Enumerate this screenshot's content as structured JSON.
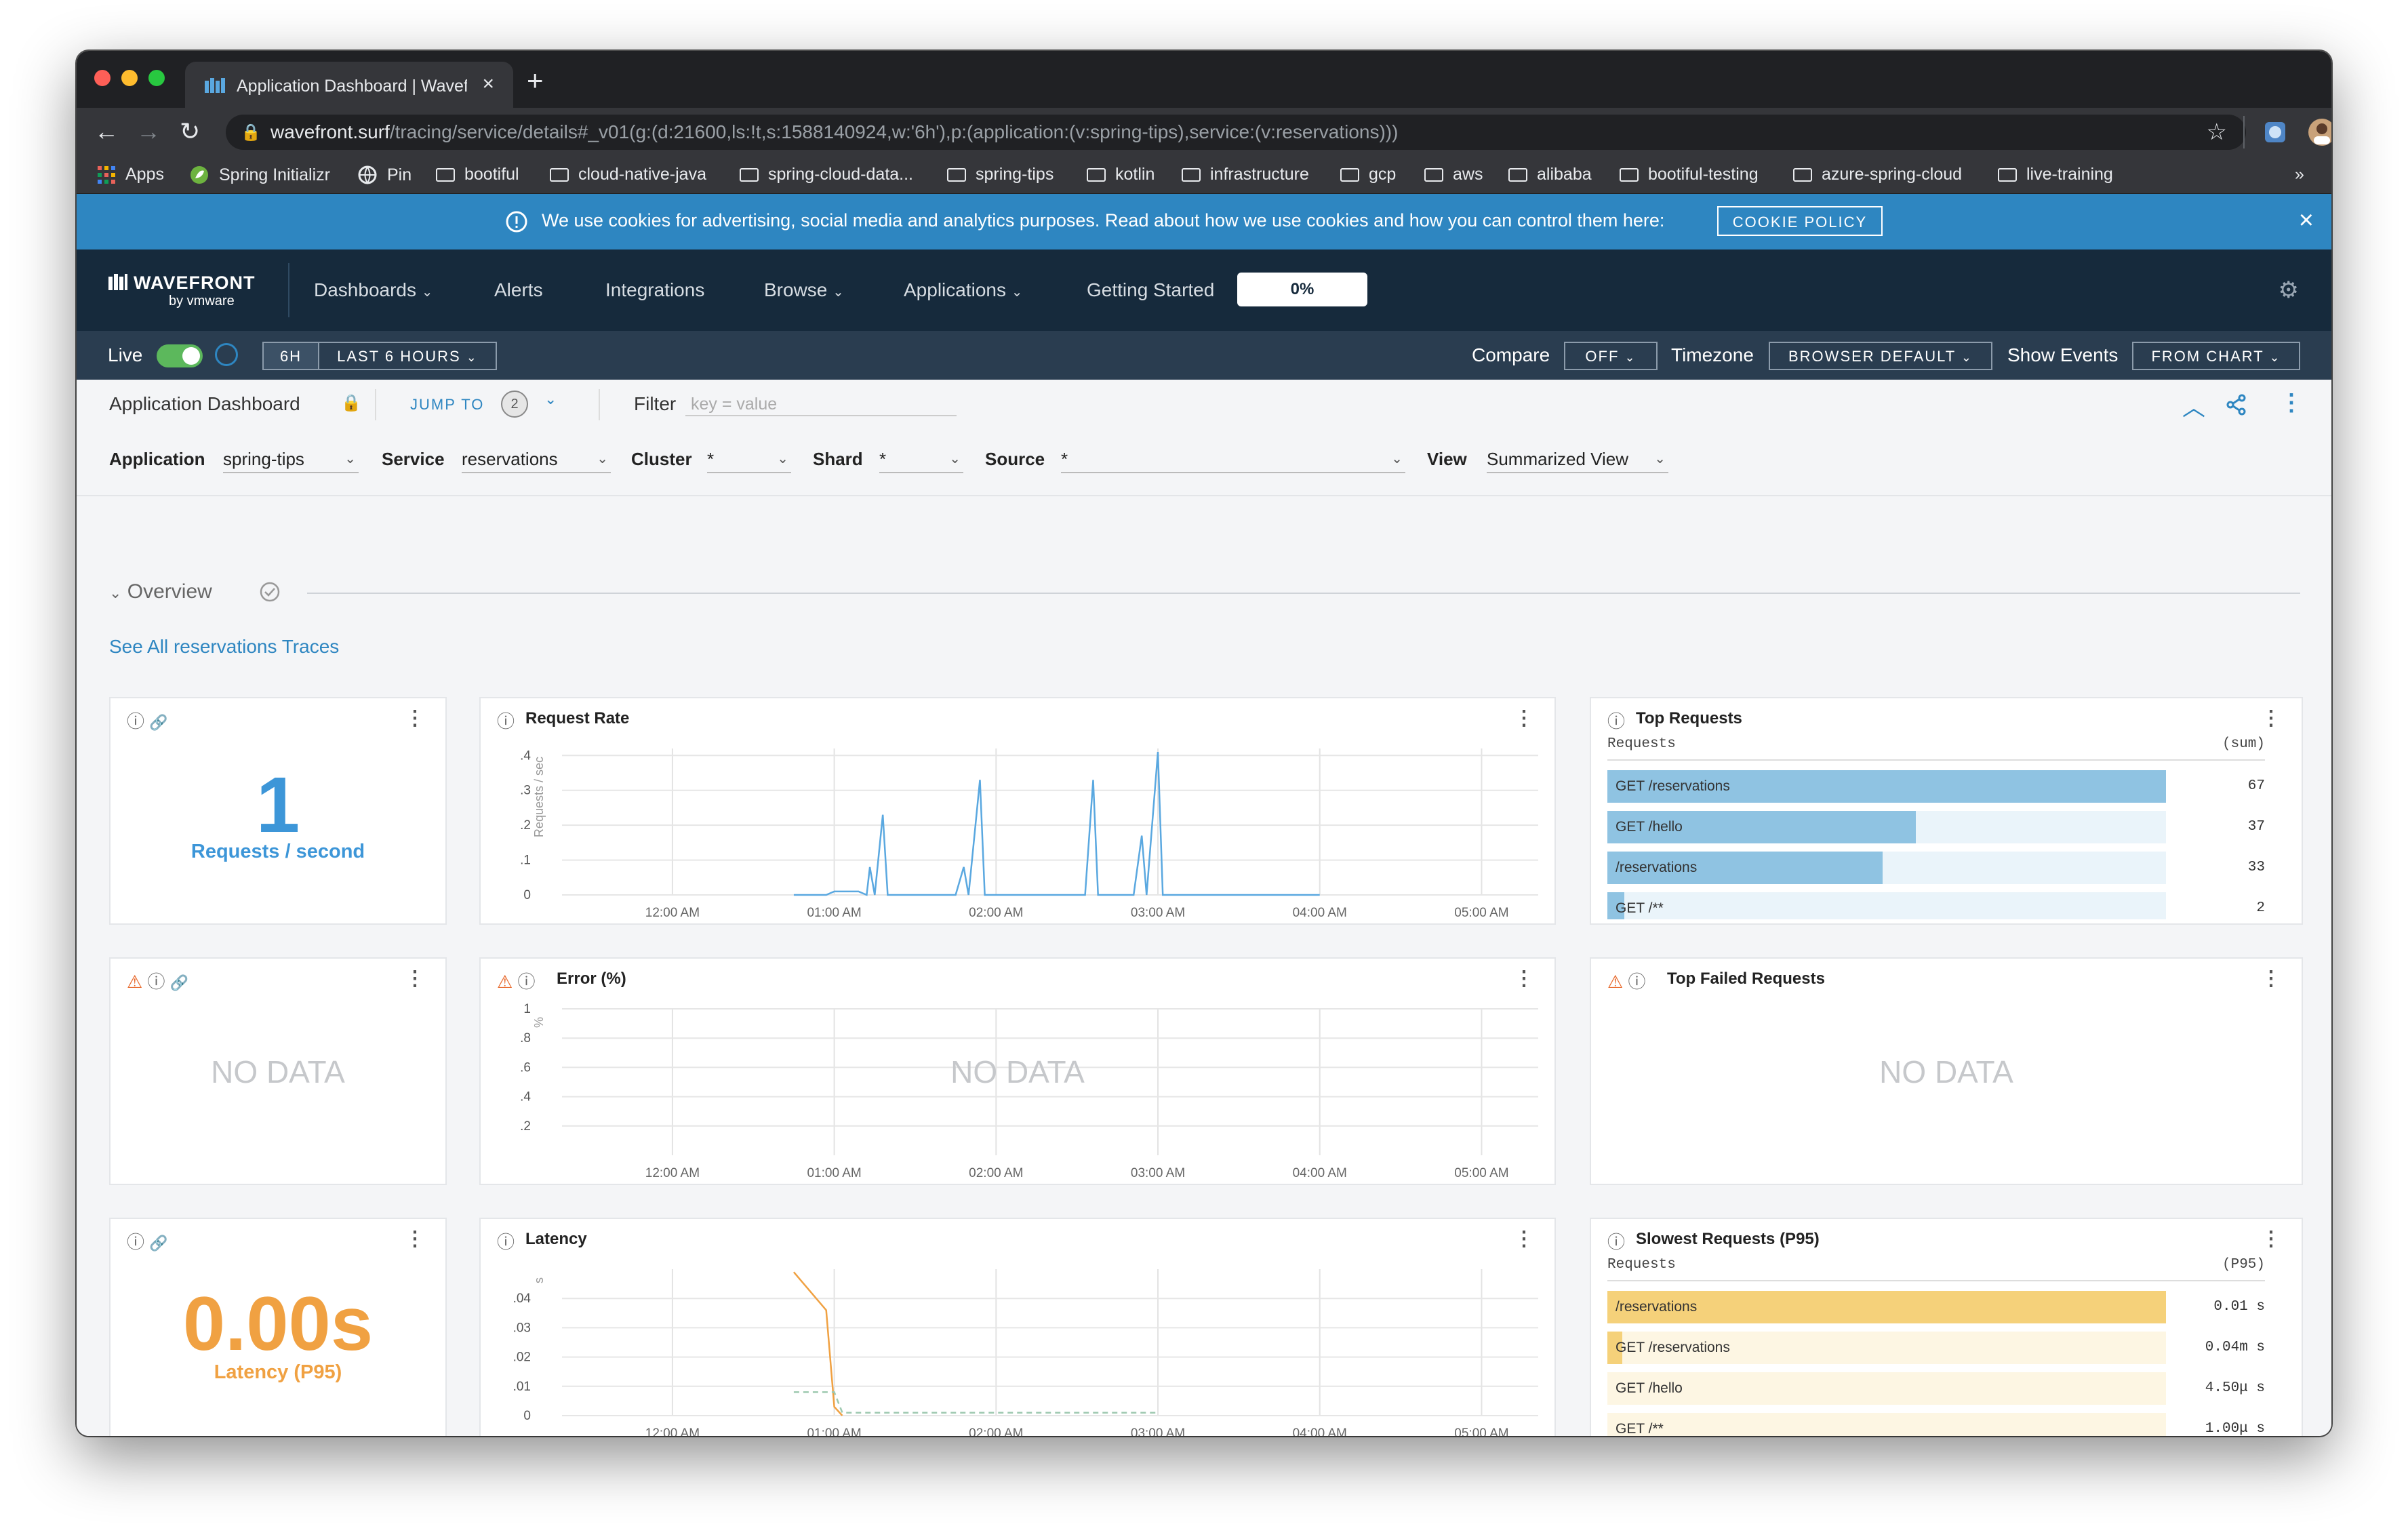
{
  "browser": {
    "tab_title": "Application Dashboard | Wavef",
    "url_host": "wavefront.surf",
    "url_path": "/tracing/service/details#_v01(g:(d:21600,ls:!t,s:1588140924,w:'6h'),p:(application:(v:spring-tips),service:(v:reservations)))",
    "bookmarks": [
      "Apps",
      "Spring Initializr",
      "Pin",
      "bootiful",
      "cloud-native-java",
      "spring-cloud-data...",
      "spring-tips",
      "kotlin",
      "infrastructure",
      "gcp",
      "aws",
      "alibaba",
      "bootiful-testing",
      "azure-spring-cloud",
      "live-training"
    ],
    "more": "»"
  },
  "cookie": {
    "text": "We use cookies for advertising, social media and analytics purposes. Read about how we use cookies and how you can control them here:",
    "button": "COOKIE POLICY"
  },
  "header": {
    "logo": "WAVEFRONT",
    "logo_by": "by vmware",
    "nav": [
      "Dashboards",
      "Alerts",
      "Integrations",
      "Browse",
      "Applications",
      "Getting Started"
    ],
    "progress": "0%"
  },
  "timebar": {
    "live": "Live",
    "range_short": "6H",
    "range_long": "LAST 6 HOURS",
    "compare_label": "Compare",
    "compare_value": "OFF",
    "timezone_label": "Timezone",
    "timezone_value": "BROWSER DEFAULT",
    "events_label": "Show Events",
    "events_value": "FROM CHART"
  },
  "dashbar": {
    "title": "Application Dashboard",
    "jump_to": "JUMP TO",
    "jump_count": "2",
    "filter_label": "Filter",
    "filter_placeholder": "key = value"
  },
  "variables": {
    "application_label": "Application",
    "application_value": "spring-tips",
    "service_label": "Service",
    "service_value": "reservations",
    "cluster_label": "Cluster",
    "cluster_value": "*",
    "shard_label": "Shard",
    "shard_value": "*",
    "source_label": "Source",
    "source_value": "*",
    "view_label": "View",
    "view_value": "Summarized View"
  },
  "section": {
    "title": "Overview",
    "traces_link": "See All reservations Traces"
  },
  "cards": {
    "requests_value": "1",
    "requests_unit": "Requests / second",
    "request_rate_title": "Request Rate",
    "request_rate_unit": "Requests / sec",
    "top_requests_title": "Top Requests",
    "top_requests_col": "Requests",
    "top_requests_agg": "(sum)",
    "no_data": "NO DATA",
    "error_title": "Error (%)",
    "error_unit": "%",
    "top_failed_title": "Top Failed Requests",
    "latency_value": "0.00s",
    "latency_unit": "Latency (P95)",
    "latency_title": "Latency",
    "latency_axis_unit": "s",
    "slowest_title": "Slowest Requests (P95)",
    "slowest_col": "Requests",
    "slowest_agg": "(P95)"
  },
  "top_requests": [
    {
      "label": "GET /reservations",
      "value": "67",
      "fraction": 1.0
    },
    {
      "label": "GET /hello",
      "value": "37",
      "fraction": 0.552
    },
    {
      "label": "/reservations",
      "value": "33",
      "fraction": 0.493
    },
    {
      "label": "GET /**",
      "value": "2",
      "fraction": 0.03
    }
  ],
  "slowest_requests": [
    {
      "label": "/reservations",
      "value": "0.01 s",
      "fraction": 1.0
    },
    {
      "label": "GET /reservations",
      "value": "0.04m s",
      "fraction": 0.004
    },
    {
      "label": "GET /hello",
      "value": "4.50μ s",
      "fraction": 0.0
    },
    {
      "label": "GET /**",
      "value": "1.00μ s",
      "fraction": 0.0
    }
  ],
  "colors": {
    "accent": "#2e86c1",
    "header_bg": "#162a3c",
    "timebar_bg": "#2a3d50",
    "bar_blue": "#8fc3e2",
    "bar_blue_bg": "#eaf4fa",
    "bar_yellow": "#f5d17a",
    "bar_yellow_bg": "#fdf6e3",
    "latency_orange": "#f0a142",
    "warning": "#e8692c"
  },
  "chart_data": [
    {
      "type": "line",
      "title": "Request Rate",
      "ylabel": "Requests / sec",
      "x_ticks": [
        "12:00 AM",
        "01:00 AM",
        "02:00 AM",
        "03:00 AM",
        "04:00 AM",
        "05:00 AM"
      ],
      "y_ticks": [
        "0",
        ".1",
        ".2",
        ".3",
        ".4"
      ],
      "ylim": [
        0,
        0.42
      ],
      "series": [
        {
          "points": [
            [
              0.75,
              0
            ],
            [
              0.95,
              0
            ],
            [
              1.0,
              0.01
            ],
            [
              1.15,
              0.01
            ],
            [
              1.2,
              0
            ],
            [
              1.22,
              0.08
            ],
            [
              1.25,
              0
            ],
            [
              1.3,
              0.23
            ],
            [
              1.33,
              0
            ],
            [
              1.75,
              0
            ],
            [
              1.8,
              0.08
            ],
            [
              1.83,
              0
            ],
            [
              1.9,
              0.33
            ],
            [
              1.93,
              0
            ],
            [
              2.55,
              0
            ],
            [
              2.6,
              0.33
            ],
            [
              2.63,
              0
            ],
            [
              2.85,
              0
            ],
            [
              2.9,
              0.17
            ],
            [
              2.93,
              0
            ],
            [
              3.0,
              0.41
            ],
            [
              3.03,
              0
            ],
            [
              4.0,
              0
            ]
          ]
        }
      ]
    },
    {
      "type": "line",
      "title": "Error (%)",
      "ylabel": "%",
      "x_ticks": [
        "12:00 AM",
        "01:00 AM",
        "02:00 AM",
        "03:00 AM",
        "04:00 AM",
        "05:00 AM"
      ],
      "y_ticks": [
        ".2",
        ".4",
        ".6",
        ".8",
        "1"
      ],
      "ylim": [
        0,
        1
      ],
      "series": []
    },
    {
      "type": "line",
      "title": "Latency",
      "ylabel": "s",
      "x_ticks": [
        "12:00 AM",
        "01:00 AM",
        "02:00 AM",
        "03:00 AM",
        "04:00 AM",
        "05:00 AM"
      ],
      "y_ticks": [
        "0",
        ".01",
        ".02",
        ".03",
        ".04"
      ],
      "ylim": [
        0,
        0.05
      ],
      "series": [
        {
          "color": "#f0a142",
          "points": [
            [
              0.75,
              0.049
            ],
            [
              0.95,
              0.036
            ],
            [
              1.0,
              0.003
            ],
            [
              1.05,
              0.0
            ]
          ]
        },
        {
          "color": "#9ec9b0",
          "dashed": true,
          "points": [
            [
              0.75,
              0.008
            ],
            [
              1.0,
              0.008
            ],
            [
              1.05,
              0.001
            ],
            [
              3.0,
              0.001
            ]
          ]
        }
      ]
    }
  ]
}
